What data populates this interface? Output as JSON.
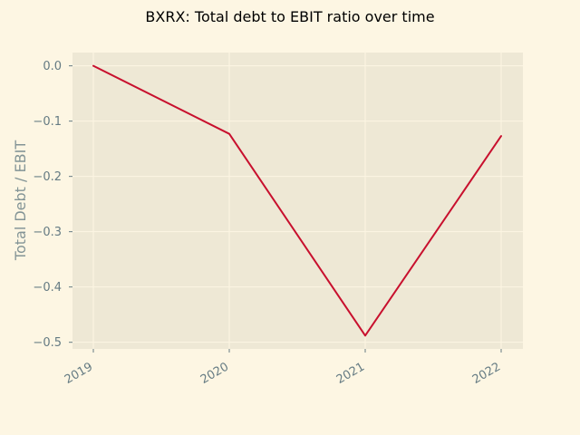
{
  "chart_data": {
    "type": "line",
    "title": "BXRX: Total debt to EBIT ratio over time",
    "xlabel": "",
    "ylabel": "Total Debt / EBIT",
    "categories": [
      "2019",
      "2020",
      "2021",
      "2022"
    ],
    "series": [
      {
        "values": [
          0.0,
          -0.123,
          -0.488,
          -0.127
        ]
      }
    ],
    "yticks": [
      0.0,
      -0.1,
      -0.2,
      -0.3,
      -0.4,
      -0.5
    ],
    "ytick_labels": [
      "0.0",
      "−0.1",
      "−0.2",
      "−0.3",
      "−0.4",
      "−0.5"
    ],
    "ylim": [
      -0.512,
      0.024
    ],
    "grid": true,
    "colors": {
      "figure_bg": "#fdf6e3",
      "plot_bg": "#eee8d5",
      "grid": "#fdf6e3",
      "line": "#c8102e",
      "tick_label": "#657b83",
      "axis_label": "#839496"
    }
  }
}
